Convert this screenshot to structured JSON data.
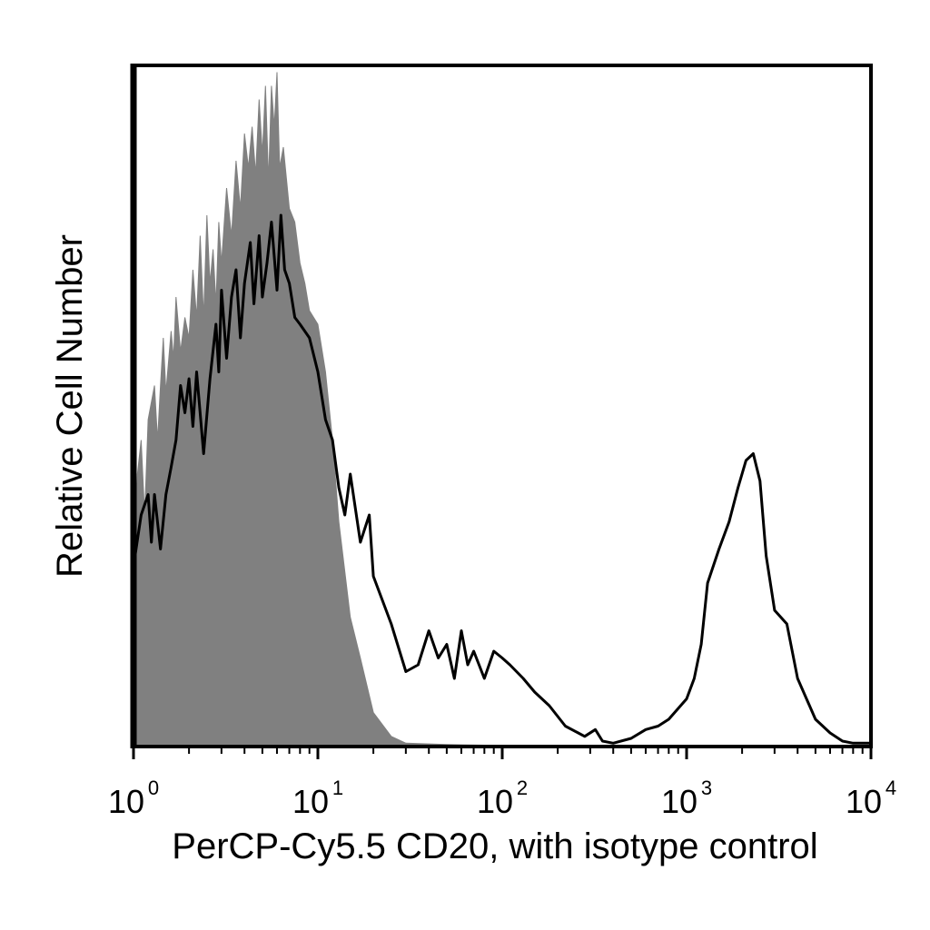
{
  "chart_data": {
    "type": "area",
    "xlabel": "PerCP-Cy5.5 CD20, with isotype control",
    "ylabel": "Relative Cell Number",
    "xscale": "log",
    "xlim": [
      1,
      10000
    ],
    "ylim": [
      0,
      100
    ],
    "grid": false,
    "x_ticks": [
      {
        "base": "10",
        "exp": "0",
        "value": 1
      },
      {
        "base": "10",
        "exp": "1",
        "value": 10
      },
      {
        "base": "10",
        "exp": "2",
        "value": 100
      },
      {
        "base": "10",
        "exp": "3",
        "value": 1000
      },
      {
        "base": "10",
        "exp": "4",
        "value": 10000
      }
    ],
    "series": [
      {
        "style": "filled",
        "color": "#808080",
        "points": [
          [
            1.02,
            28
          ],
          [
            1.05,
            40
          ],
          [
            1.1,
            45
          ],
          [
            1.15,
            34
          ],
          [
            1.2,
            48
          ],
          [
            1.3,
            53
          ],
          [
            1.35,
            45
          ],
          [
            1.4,
            53
          ],
          [
            1.45,
            60
          ],
          [
            1.5,
            52
          ],
          [
            1.6,
            61
          ],
          [
            1.65,
            57
          ],
          [
            1.7,
            66
          ],
          [
            1.8,
            58
          ],
          [
            1.9,
            63
          ],
          [
            2.0,
            60
          ],
          [
            2.1,
            70
          ],
          [
            2.2,
            63
          ],
          [
            2.3,
            75
          ],
          [
            2.4,
            63
          ],
          [
            2.5,
            78
          ],
          [
            2.6,
            68
          ],
          [
            2.7,
            73
          ],
          [
            2.8,
            65
          ],
          [
            2.9,
            77
          ],
          [
            3.0,
            71
          ],
          [
            3.2,
            82
          ],
          [
            3.4,
            75
          ],
          [
            3.6,
            86
          ],
          [
            3.8,
            79
          ],
          [
            4.0,
            90
          ],
          [
            4.2,
            85
          ],
          [
            4.4,
            91
          ],
          [
            4.6,
            84
          ],
          [
            4.8,
            95
          ],
          [
            5.0,
            87
          ],
          [
            5.2,
            97
          ],
          [
            5.4,
            83
          ],
          [
            5.6,
            97
          ],
          [
            5.8,
            91
          ],
          [
            6.0,
            99
          ],
          [
            6.2,
            85
          ],
          [
            6.5,
            88
          ],
          [
            7.0,
            79
          ],
          [
            7.5,
            77
          ],
          [
            8.0,
            71
          ],
          [
            8.5,
            68
          ],
          [
            9.0,
            64
          ],
          [
            10.0,
            62
          ],
          [
            11.0,
            55
          ],
          [
            12.0,
            45
          ],
          [
            13.0,
            33
          ],
          [
            15.0,
            19
          ],
          [
            17.0,
            13
          ],
          [
            20.0,
            5
          ],
          [
            25.0,
            1.5
          ],
          [
            30.0,
            0.5
          ],
          [
            50.0,
            0.3
          ],
          [
            80.0,
            0.2
          ],
          [
            120.0,
            0.1
          ],
          [
            10000,
            0
          ]
        ]
      },
      {
        "style": "outline",
        "color": "#000000",
        "points": [
          [
            1.02,
            28
          ],
          [
            1.1,
            34
          ],
          [
            1.2,
            37
          ],
          [
            1.25,
            30
          ],
          [
            1.3,
            37
          ],
          [
            1.4,
            29
          ],
          [
            1.5,
            37
          ],
          [
            1.6,
            41
          ],
          [
            1.7,
            45
          ],
          [
            1.8,
            53
          ],
          [
            1.9,
            49
          ],
          [
            2.0,
            54
          ],
          [
            2.1,
            47
          ],
          [
            2.2,
            55
          ],
          [
            2.4,
            43
          ],
          [
            2.6,
            54
          ],
          [
            2.8,
            62
          ],
          [
            2.9,
            55
          ],
          [
            3.0,
            67
          ],
          [
            3.2,
            57
          ],
          [
            3.4,
            66
          ],
          [
            3.6,
            70
          ],
          [
            3.8,
            60
          ],
          [
            4.0,
            68
          ],
          [
            4.3,
            74
          ],
          [
            4.5,
            65
          ],
          [
            4.8,
            75
          ],
          [
            5.0,
            66
          ],
          [
            5.3,
            71
          ],
          [
            5.6,
            77
          ],
          [
            6.0,
            67
          ],
          [
            6.3,
            78
          ],
          [
            6.6,
            70
          ],
          [
            7.0,
            68
          ],
          [
            7.5,
            63
          ],
          [
            8.0,
            62
          ],
          [
            9.0,
            60
          ],
          [
            10.0,
            55
          ],
          [
            11.0,
            48
          ],
          [
            12.0,
            45
          ],
          [
            13.0,
            38
          ],
          [
            14.0,
            34
          ],
          [
            15.0,
            40
          ],
          [
            17.0,
            30
          ],
          [
            19.0,
            34
          ],
          [
            20.0,
            25
          ],
          [
            25.0,
            18
          ],
          [
            30.0,
            11
          ],
          [
            35.0,
            12
          ],
          [
            40.0,
            17
          ],
          [
            45.0,
            13
          ],
          [
            50.0,
            15
          ],
          [
            55.0,
            10
          ],
          [
            60.0,
            17
          ],
          [
            65.0,
            12
          ],
          [
            70.0,
            14
          ],
          [
            80.0,
            10
          ],
          [
            90.0,
            14
          ],
          [
            100.0,
            13
          ],
          [
            110.0,
            12
          ],
          [
            130.0,
            10
          ],
          [
            150.0,
            8
          ],
          [
            180.0,
            6
          ],
          [
            220.0,
            3
          ],
          [
            280.0,
            1.5
          ],
          [
            320.0,
            2.5
          ],
          [
            350.0,
            0.8
          ],
          [
            400.0,
            0.5
          ],
          [
            500.0,
            1.2
          ],
          [
            600.0,
            2.5
          ],
          [
            700.0,
            3
          ],
          [
            800.0,
            4
          ],
          [
            1000.0,
            7
          ],
          [
            1100.0,
            10
          ],
          [
            1200.0,
            15
          ],
          [
            1300.0,
            24
          ],
          [
            1500.0,
            29
          ],
          [
            1700.0,
            33
          ],
          [
            1900.0,
            38
          ],
          [
            2100.0,
            42
          ],
          [
            2300.0,
            43
          ],
          [
            2500.0,
            39
          ],
          [
            2700.0,
            28
          ],
          [
            3000.0,
            20
          ],
          [
            3500.0,
            18
          ],
          [
            4000.0,
            10
          ],
          [
            5000.0,
            4
          ],
          [
            6000.0,
            2
          ],
          [
            7000.0,
            0.8
          ],
          [
            8000.0,
            0.5
          ],
          [
            10000,
            0.5
          ]
        ]
      }
    ]
  }
}
